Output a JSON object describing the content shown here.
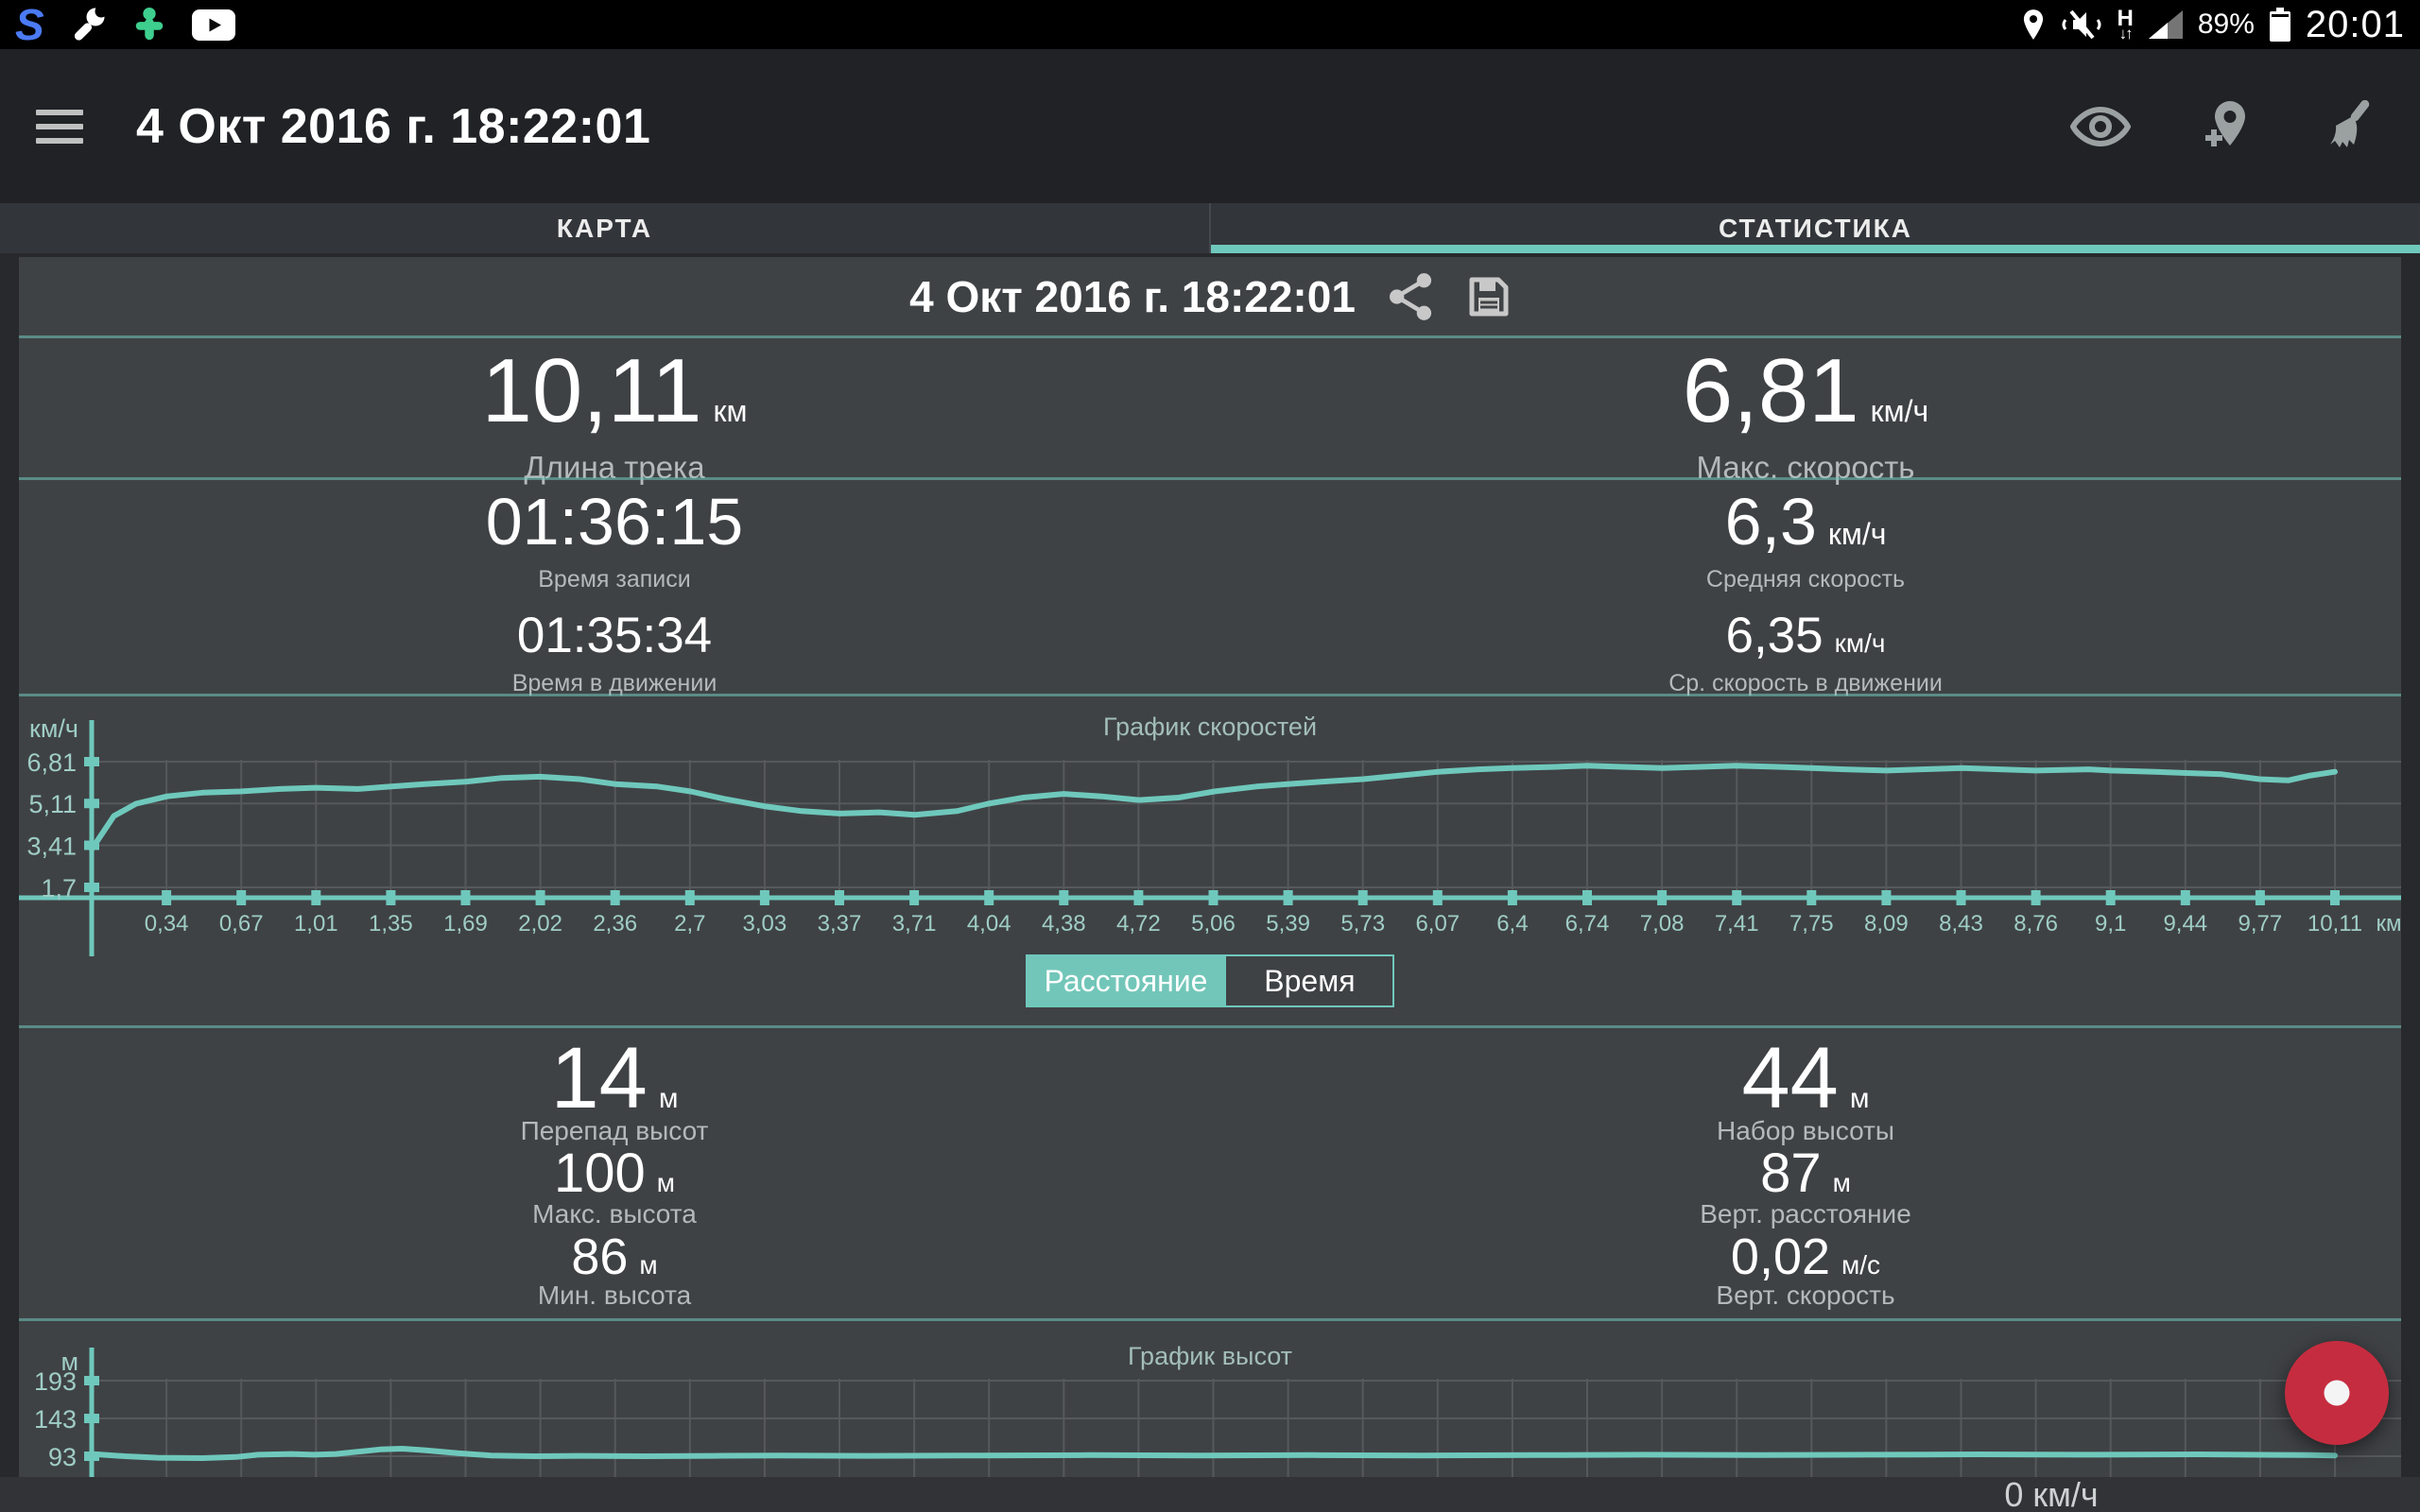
{
  "theme": {
    "accent": "#6fc8bc",
    "grid": "#56595b",
    "axis_label": "#9fcdc6",
    "record_red": "#c62c3f"
  },
  "status_bar": {
    "time": "20:01",
    "battery_pct": "89%",
    "logo_letter": "S",
    "network_letter": "H",
    "network_arrows": "↓↑"
  },
  "toolbar": {
    "title": "4 Окт 2016 г. 18:22:01"
  },
  "tabs": {
    "map": "КАРТА",
    "stats": "СТАТИСТИКА"
  },
  "panel": {
    "title": "4 Окт 2016 г. 18:22:01"
  },
  "summary": {
    "track_length": {
      "value": "10,11",
      "unit": "км",
      "label": "Длина трека"
    },
    "max_speed": {
      "value": "6,81",
      "unit": "км/ч",
      "label": "Макс. скорость"
    },
    "record_time": {
      "value": "01:36:15",
      "unit": "",
      "label": "Время записи"
    },
    "avg_speed": {
      "value": "6,3",
      "unit": "км/ч",
      "label": "Средняя скорость"
    },
    "moving_time": {
      "value": "01:35:34",
      "unit": "",
      "label": "Время в движении"
    },
    "avg_moving_speed": {
      "value": "6,35",
      "unit": "км/ч",
      "label": "Ср. скорость в движении"
    }
  },
  "toggle": {
    "distance": "Расстояние",
    "time": "Время"
  },
  "elevation_stats": {
    "drop": {
      "value": "14",
      "unit": "м",
      "label": "Перепад высот"
    },
    "gain": {
      "value": "44",
      "unit": "м",
      "label": "Набор высоты"
    },
    "max_alt": {
      "value": "100",
      "unit": "м",
      "label": "Макс. высота"
    },
    "vert_dist": {
      "value": "87",
      "unit": "м",
      "label": "Верт. расстояние"
    },
    "min_alt": {
      "value": "86",
      "unit": "м",
      "label": "Мин. высота"
    },
    "vert_speed": {
      "value": "0,02",
      "unit": "м/с",
      "label": "Верт. скорость"
    }
  },
  "bottom_bar": {
    "current_speed": "0 км/ч"
  },
  "chart_data": [
    {
      "type": "line",
      "title": "График скоростей",
      "ylabel": "км/ч",
      "xlabel": "км",
      "legend": "none",
      "grid": true,
      "ylim": [
        0,
        7.5
      ],
      "y_ticks": {
        "labels": [
          "6,81",
          "5,11",
          "3,41",
          "1,7"
        ],
        "values": [
          6.81,
          5.11,
          3.41,
          1.7
        ]
      },
      "x_ticks": [
        "0,34",
        "0,67",
        "1,01",
        "1,35",
        "1,69",
        "2,02",
        "2,36",
        "2,7",
        "3,03",
        "3,37",
        "3,71",
        "4,04",
        "4,38",
        "4,72",
        "5,06",
        "5,39",
        "5,73",
        "6,07",
        "6,4",
        "6,74",
        "7,08",
        "7,41",
        "7,75",
        "8,09",
        "8,43",
        "8,76",
        "9,1",
        "9,44",
        "9,77",
        "10,11"
      ],
      "x_max": 10.11,
      "series": [
        [
          0,
          3.25
        ],
        [
          0.1,
          4.6
        ],
        [
          0.2,
          5.1
        ],
        [
          0.34,
          5.4
        ],
        [
          0.5,
          5.55
        ],
        [
          0.67,
          5.6
        ],
        [
          0.85,
          5.7
        ],
        [
          1.01,
          5.75
        ],
        [
          1.2,
          5.7
        ],
        [
          1.35,
          5.8
        ],
        [
          1.5,
          5.9
        ],
        [
          1.69,
          6.0
        ],
        [
          1.85,
          6.15
        ],
        [
          2.02,
          6.2
        ],
        [
          2.2,
          6.1
        ],
        [
          2.36,
          5.9
        ],
        [
          2.55,
          5.8
        ],
        [
          2.7,
          5.6
        ],
        [
          2.85,
          5.3
        ],
        [
          3.03,
          5.0
        ],
        [
          3.2,
          4.8
        ],
        [
          3.37,
          4.7
        ],
        [
          3.55,
          4.75
        ],
        [
          3.71,
          4.65
        ],
        [
          3.9,
          4.8
        ],
        [
          4.04,
          5.1
        ],
        [
          4.2,
          5.35
        ],
        [
          4.38,
          5.5
        ],
        [
          4.55,
          5.4
        ],
        [
          4.72,
          5.25
        ],
        [
          4.9,
          5.35
        ],
        [
          5.06,
          5.6
        ],
        [
          5.25,
          5.8
        ],
        [
          5.39,
          5.9
        ],
        [
          5.55,
          6.0
        ],
        [
          5.73,
          6.1
        ],
        [
          5.9,
          6.25
        ],
        [
          6.07,
          6.4
        ],
        [
          6.25,
          6.5
        ],
        [
          6.4,
          6.55
        ],
        [
          6.6,
          6.6
        ],
        [
          6.74,
          6.65
        ],
        [
          6.9,
          6.6
        ],
        [
          7.08,
          6.55
        ],
        [
          7.25,
          6.6
        ],
        [
          7.41,
          6.65
        ],
        [
          7.6,
          6.6
        ],
        [
          7.75,
          6.55
        ],
        [
          7.9,
          6.5
        ],
        [
          8.09,
          6.45
        ],
        [
          8.25,
          6.5
        ],
        [
          8.43,
          6.55
        ],
        [
          8.6,
          6.5
        ],
        [
          8.76,
          6.45
        ],
        [
          9.0,
          6.5
        ],
        [
          9.1,
          6.45
        ],
        [
          9.3,
          6.4
        ],
        [
          9.44,
          6.35
        ],
        [
          9.6,
          6.3
        ],
        [
          9.77,
          6.1
        ],
        [
          9.9,
          6.05
        ],
        [
          10.0,
          6.25
        ],
        [
          10.11,
          6.4
        ]
      ]
    },
    {
      "type": "line",
      "title": "График высот",
      "ylabel": "м",
      "xlabel": "",
      "legend": "none",
      "grid": true,
      "ylim": [
        60,
        220
      ],
      "y_ticks": {
        "labels": [
          "193",
          "143",
          "93"
        ],
        "values": [
          193,
          143,
          93
        ]
      },
      "x_ticks": [],
      "x_max": 10.11,
      "series": [
        [
          0,
          96
        ],
        [
          0.15,
          93
        ],
        [
          0.3,
          91
        ],
        [
          0.5,
          90.5
        ],
        [
          0.65,
          92
        ],
        [
          0.75,
          95
        ],
        [
          0.9,
          96
        ],
        [
          1.0,
          95
        ],
        [
          1.1,
          96
        ],
        [
          1.2,
          99
        ],
        [
          1.3,
          102
        ],
        [
          1.4,
          103
        ],
        [
          1.5,
          101
        ],
        [
          1.65,
          97
        ],
        [
          1.8,
          94
        ],
        [
          2.0,
          93
        ],
        [
          2.2,
          93.5
        ],
        [
          2.5,
          93
        ],
        [
          2.8,
          93.5
        ],
        [
          3.1,
          94
        ],
        [
          3.5,
          93.5
        ],
        [
          4.0,
          94
        ],
        [
          4.5,
          94.5
        ],
        [
          5.0,
          94
        ],
        [
          5.5,
          94.5
        ],
        [
          6.0,
          94
        ],
        [
          6.5,
          94.5
        ],
        [
          7.0,
          95
        ],
        [
          7.5,
          94.5
        ],
        [
          8.0,
          95
        ],
        [
          8.5,
          95.5
        ],
        [
          9.0,
          95
        ],
        [
          9.5,
          95.5
        ],
        [
          10.0,
          94.5
        ],
        [
          10.11,
          94
        ]
      ]
    }
  ]
}
